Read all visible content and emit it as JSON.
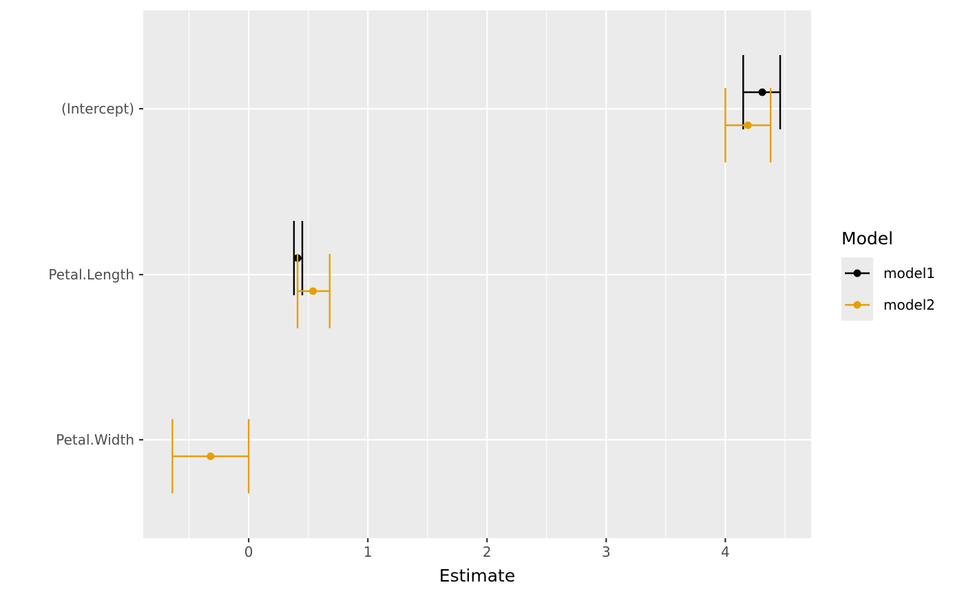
{
  "chart_data": {
    "type": "coefficient-plot",
    "title": "",
    "xlabel": "Estimate",
    "ylabel": "",
    "xlim": [
      -0.885,
      4.72
    ],
    "x_ticks": [
      0,
      1,
      2,
      3,
      4
    ],
    "x_tick_labels": [
      "0",
      "1",
      "2",
      "3",
      "4"
    ],
    "terms": [
      "(Intercept)",
      "Petal.Length",
      "Petal.Width"
    ],
    "grid": true,
    "legend": {
      "title": "Model",
      "position": "right"
    },
    "series": [
      {
        "name": "model1",
        "color": "#000000",
        "points": [
          {
            "term": "(Intercept)",
            "estimate": 4.31,
            "low": 4.15,
            "high": 4.46
          },
          {
            "term": "Petal.Length",
            "estimate": 0.41,
            "low": 0.38,
            "high": 0.45
          }
        ]
      },
      {
        "name": "model2",
        "color": "#E69F00",
        "points": [
          {
            "term": "(Intercept)",
            "estimate": 4.19,
            "low": 4.0,
            "high": 4.38
          },
          {
            "term": "Petal.Length",
            "estimate": 0.54,
            "low": 0.41,
            "high": 0.68
          },
          {
            "term": "Petal.Width",
            "estimate": -0.32,
            "low": -0.64,
            "high": 0.0
          }
        ]
      }
    ]
  }
}
